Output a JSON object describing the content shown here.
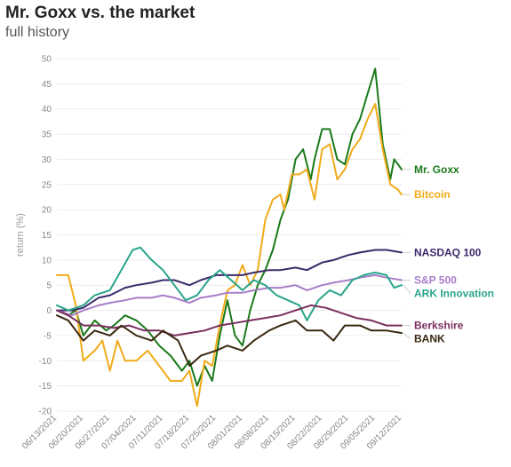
{
  "title": "Mr. Goxx vs. the market",
  "subtitle": "full history",
  "chart_data": {
    "type": "line",
    "ylabel": "return (%)",
    "ylim": [
      -20,
      50
    ],
    "yticks": [
      50,
      45,
      40,
      35,
      30,
      25,
      20,
      15,
      10,
      5,
      0,
      -5,
      -10,
      -15,
      -20
    ],
    "xlim": [
      "2021-06-13",
      "2021-09-12"
    ],
    "xticks": [
      "06/13/2021",
      "06/20/2021",
      "06/27/2021",
      "07/04/2021",
      "07/11/2021",
      "07/18/2021",
      "07/25/2021",
      "08/01/2021",
      "08/08/2021",
      "08/15/2021",
      "08/22/2021",
      "08/29/2021",
      "09/05/2021",
      "09/12/2021"
    ],
    "grid": "horizontal",
    "series": [
      {
        "name": "Mr. Goxx",
        "color": "#1a7a1a",
        "points": [
          [
            "2021-06-13",
            0
          ],
          [
            "2021-06-16",
            -1
          ],
          [
            "2021-06-18",
            0
          ],
          [
            "2021-06-20",
            -5
          ],
          [
            "2021-06-23",
            -2
          ],
          [
            "2021-06-26",
            -4
          ],
          [
            "2021-06-28",
            -3
          ],
          [
            "2021-07-01",
            -1
          ],
          [
            "2021-07-04",
            -2
          ],
          [
            "2021-07-07",
            -4
          ],
          [
            "2021-07-10",
            -7
          ],
          [
            "2021-07-13",
            -9
          ],
          [
            "2021-07-16",
            -12
          ],
          [
            "2021-07-18",
            -10
          ],
          [
            "2021-07-20",
            -15
          ],
          [
            "2021-07-22",
            -11
          ],
          [
            "2021-07-24",
            -14
          ],
          [
            "2021-07-26",
            -5
          ],
          [
            "2021-07-28",
            2
          ],
          [
            "2021-07-30",
            -5
          ],
          [
            "2021-08-01",
            -7
          ],
          [
            "2021-08-03",
            0
          ],
          [
            "2021-08-05",
            5
          ],
          [
            "2021-08-07",
            8
          ],
          [
            "2021-08-09",
            12
          ],
          [
            "2021-08-11",
            18
          ],
          [
            "2021-08-13",
            22
          ],
          [
            "2021-08-15",
            30
          ],
          [
            "2021-08-17",
            32
          ],
          [
            "2021-08-19",
            26
          ],
          [
            "2021-08-20",
            30
          ],
          [
            "2021-08-22",
            36
          ],
          [
            "2021-08-24",
            36
          ],
          [
            "2021-08-26",
            30
          ],
          [
            "2021-08-28",
            29
          ],
          [
            "2021-08-30",
            35
          ],
          [
            "2021-09-01",
            38
          ],
          [
            "2021-09-03",
            43
          ],
          [
            "2021-09-05",
            48
          ],
          [
            "2021-09-07",
            33
          ],
          [
            "2021-09-09",
            26
          ],
          [
            "2021-09-10",
            30
          ],
          [
            "2021-09-12",
            28
          ]
        ]
      },
      {
        "name": "Bitcoin",
        "color": "#f0ab1a",
        "points": [
          [
            "2021-06-13",
            7
          ],
          [
            "2021-06-16",
            7
          ],
          [
            "2021-06-18",
            1
          ],
          [
            "2021-06-20",
            -10
          ],
          [
            "2021-06-23",
            -8
          ],
          [
            "2021-06-25",
            -6
          ],
          [
            "2021-06-27",
            -12
          ],
          [
            "2021-06-29",
            -6
          ],
          [
            "2021-07-01",
            -10
          ],
          [
            "2021-07-04",
            -10
          ],
          [
            "2021-07-07",
            -8
          ],
          [
            "2021-07-10",
            -11
          ],
          [
            "2021-07-13",
            -14
          ],
          [
            "2021-07-16",
            -14
          ],
          [
            "2021-07-18",
            -12
          ],
          [
            "2021-07-20",
            -19
          ],
          [
            "2021-07-22",
            -10
          ],
          [
            "2021-07-24",
            -11
          ],
          [
            "2021-07-26",
            -3
          ],
          [
            "2021-07-28",
            4
          ],
          [
            "2021-07-30",
            5
          ],
          [
            "2021-08-01",
            9
          ],
          [
            "2021-08-03",
            5
          ],
          [
            "2021-08-05",
            8
          ],
          [
            "2021-08-07",
            18
          ],
          [
            "2021-08-09",
            22
          ],
          [
            "2021-08-11",
            23
          ],
          [
            "2021-08-12",
            20
          ],
          [
            "2021-08-14",
            27
          ],
          [
            "2021-08-16",
            27
          ],
          [
            "2021-08-18",
            28
          ],
          [
            "2021-08-20",
            22
          ],
          [
            "2021-08-22",
            32
          ],
          [
            "2021-08-24",
            33
          ],
          [
            "2021-08-26",
            26
          ],
          [
            "2021-08-28",
            28
          ],
          [
            "2021-08-30",
            32
          ],
          [
            "2021-09-01",
            34
          ],
          [
            "2021-09-03",
            38
          ],
          [
            "2021-09-05",
            41
          ],
          [
            "2021-09-07",
            32
          ],
          [
            "2021-09-09",
            25
          ],
          [
            "2021-09-11",
            24
          ],
          [
            "2021-09-12",
            23
          ]
        ]
      },
      {
        "name": "NASDAQ 100",
        "color": "#3a2a6a",
        "points": [
          [
            "2021-06-13",
            0
          ],
          [
            "2021-06-17",
            0
          ],
          [
            "2021-06-20",
            0.5
          ],
          [
            "2021-06-24",
            2.5
          ],
          [
            "2021-06-27",
            3
          ],
          [
            "2021-07-01",
            4.5
          ],
          [
            "2021-07-04",
            5
          ],
          [
            "2021-07-08",
            5.5
          ],
          [
            "2021-07-11",
            6
          ],
          [
            "2021-07-14",
            6
          ],
          [
            "2021-07-18",
            5
          ],
          [
            "2021-07-21",
            6
          ],
          [
            "2021-07-25",
            7
          ],
          [
            "2021-07-28",
            7
          ],
          [
            "2021-08-01",
            7
          ],
          [
            "2021-08-04",
            7.5
          ],
          [
            "2021-08-08",
            8
          ],
          [
            "2021-08-11",
            8
          ],
          [
            "2021-08-15",
            8.5
          ],
          [
            "2021-08-18",
            8
          ],
          [
            "2021-08-22",
            9.5
          ],
          [
            "2021-08-25",
            10
          ],
          [
            "2021-08-29",
            11
          ],
          [
            "2021-09-01",
            11.5
          ],
          [
            "2021-09-05",
            12
          ],
          [
            "2021-09-08",
            12
          ],
          [
            "2021-09-12",
            11.5
          ]
        ]
      },
      {
        "name": "S&P 500",
        "color": "#a77dc9",
        "points": [
          [
            "2021-06-13",
            0
          ],
          [
            "2021-06-17",
            -1
          ],
          [
            "2021-06-20",
            0
          ],
          [
            "2021-06-24",
            1
          ],
          [
            "2021-06-27",
            1.5
          ],
          [
            "2021-07-01",
            2
          ],
          [
            "2021-07-04",
            2.5
          ],
          [
            "2021-07-08",
            2.5
          ],
          [
            "2021-07-11",
            3
          ],
          [
            "2021-07-14",
            2.5
          ],
          [
            "2021-07-18",
            1.5
          ],
          [
            "2021-07-21",
            2.5
          ],
          [
            "2021-07-25",
            3
          ],
          [
            "2021-07-28",
            3.5
          ],
          [
            "2021-08-01",
            3.5
          ],
          [
            "2021-08-04",
            4
          ],
          [
            "2021-08-08",
            4.5
          ],
          [
            "2021-08-11",
            4.5
          ],
          [
            "2021-08-15",
            5
          ],
          [
            "2021-08-18",
            4
          ],
          [
            "2021-08-22",
            5
          ],
          [
            "2021-08-25",
            5.5
          ],
          [
            "2021-08-29",
            6
          ],
          [
            "2021-09-01",
            6.5
          ],
          [
            "2021-09-05",
            7
          ],
          [
            "2021-09-08",
            6.5
          ],
          [
            "2021-09-12",
            6
          ]
        ]
      },
      {
        "name": "ARK Innovation",
        "color": "#2aa58a",
        "points": [
          [
            "2021-06-13",
            1
          ],
          [
            "2021-06-16",
            0
          ],
          [
            "2021-06-20",
            1
          ],
          [
            "2021-06-23",
            3
          ],
          [
            "2021-06-27",
            4
          ],
          [
            "2021-06-30",
            8
          ],
          [
            "2021-07-03",
            12
          ],
          [
            "2021-07-05",
            12.5
          ],
          [
            "2021-07-08",
            10
          ],
          [
            "2021-07-11",
            8
          ],
          [
            "2021-07-14",
            5
          ],
          [
            "2021-07-17",
            2
          ],
          [
            "2021-07-20",
            3
          ],
          [
            "2021-07-23",
            6
          ],
          [
            "2021-07-26",
            8
          ],
          [
            "2021-07-29",
            6
          ],
          [
            "2021-08-01",
            4
          ],
          [
            "2021-08-04",
            6
          ],
          [
            "2021-08-07",
            5
          ],
          [
            "2021-08-10",
            3
          ],
          [
            "2021-08-13",
            2
          ],
          [
            "2021-08-16",
            1
          ],
          [
            "2021-08-18",
            -2
          ],
          [
            "2021-08-21",
            2
          ],
          [
            "2021-08-24",
            4
          ],
          [
            "2021-08-27",
            3
          ],
          [
            "2021-08-30",
            6
          ],
          [
            "2021-09-02",
            7
          ],
          [
            "2021-09-05",
            7.5
          ],
          [
            "2021-09-08",
            7
          ],
          [
            "2021-09-10",
            4.5
          ],
          [
            "2021-09-12",
            5
          ]
        ]
      },
      {
        "name": "Berkshire",
        "color": "#7a2e5e",
        "points": [
          [
            "2021-06-13",
            0
          ],
          [
            "2021-06-16",
            -1
          ],
          [
            "2021-06-20",
            -3
          ],
          [
            "2021-06-24",
            -3
          ],
          [
            "2021-06-28",
            -3.5
          ],
          [
            "2021-07-02",
            -3
          ],
          [
            "2021-07-06",
            -4
          ],
          [
            "2021-07-10",
            -4
          ],
          [
            "2021-07-14",
            -5
          ],
          [
            "2021-07-18",
            -4.5
          ],
          [
            "2021-07-22",
            -4
          ],
          [
            "2021-07-26",
            -3
          ],
          [
            "2021-07-30",
            -2.5
          ],
          [
            "2021-08-03",
            -2
          ],
          [
            "2021-08-07",
            -1.5
          ],
          [
            "2021-08-11",
            -1
          ],
          [
            "2021-08-15",
            0
          ],
          [
            "2021-08-19",
            1
          ],
          [
            "2021-08-23",
            0.5
          ],
          [
            "2021-08-27",
            -0.5
          ],
          [
            "2021-08-31",
            -1.5
          ],
          [
            "2021-09-04",
            -2
          ],
          [
            "2021-09-08",
            -3
          ],
          [
            "2021-09-12",
            -3
          ]
        ]
      },
      {
        "name": "BANK",
        "color": "#3a2810",
        "points": [
          [
            "2021-06-13",
            -1
          ],
          [
            "2021-06-16",
            -2
          ],
          [
            "2021-06-20",
            -6
          ],
          [
            "2021-06-23",
            -4
          ],
          [
            "2021-06-27",
            -5
          ],
          [
            "2021-06-30",
            -3
          ],
          [
            "2021-07-04",
            -5
          ],
          [
            "2021-07-08",
            -6
          ],
          [
            "2021-07-11",
            -4
          ],
          [
            "2021-07-15",
            -6
          ],
          [
            "2021-07-18",
            -11
          ],
          [
            "2021-07-21",
            -9
          ],
          [
            "2021-07-25",
            -8
          ],
          [
            "2021-07-28",
            -7
          ],
          [
            "2021-08-01",
            -8
          ],
          [
            "2021-08-04",
            -6
          ],
          [
            "2021-08-08",
            -4
          ],
          [
            "2021-08-11",
            -3
          ],
          [
            "2021-08-15",
            -2
          ],
          [
            "2021-08-18",
            -4
          ],
          [
            "2021-08-22",
            -4
          ],
          [
            "2021-08-25",
            -6
          ],
          [
            "2021-08-28",
            -3
          ],
          [
            "2021-09-01",
            -3
          ],
          [
            "2021-09-04",
            -4
          ],
          [
            "2021-09-08",
            -4
          ],
          [
            "2021-09-12",
            -4.5
          ]
        ]
      }
    ]
  }
}
